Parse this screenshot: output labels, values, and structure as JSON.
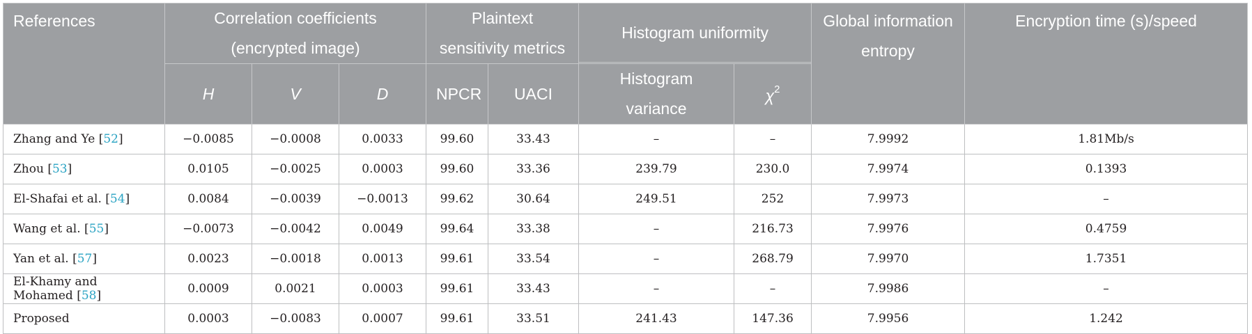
{
  "headers": {
    "references": "References",
    "correlation": "Correlation coefficients (encrypted image)",
    "plaintext": "Plaintext sensitivity metrics",
    "histogram": "Histogram uniformity",
    "entropy": "Global information entropy",
    "time": "Encryption time (s)/speed",
    "h": "H",
    "v": "V",
    "d": "D",
    "npcr": "NPCR",
    "uaci": "UACI",
    "hist_var": "Histogram variance",
    "chi": "χ",
    "chi_sup": "2"
  },
  "rows": [
    {
      "ref": "Zhang and Ye [",
      "cite": "52",
      "close": "]",
      "h": "−0.0085",
      "v": "−0.0008",
      "d": "0.0033",
      "npcr": "99.60",
      "uaci": "33.43",
      "hvar": "–",
      "chi": "–",
      "entropy": "7.9992",
      "time": "1.81Mb/s"
    },
    {
      "ref": "Zhou [",
      "cite": "53",
      "close": "]",
      "h": "0.0105",
      "v": "−0.0025",
      "d": "0.0003",
      "npcr": "99.60",
      "uaci": "33.36",
      "hvar": "239.79",
      "chi": "230.0",
      "entropy": "7.9974",
      "time": "0.1393"
    },
    {
      "ref": "El-Shafai et al. [",
      "cite": "54",
      "close": "]",
      "h": "0.0084",
      "v": "−0.0039",
      "d": "−0.0013",
      "npcr": "99.62",
      "uaci": "30.64",
      "hvar": "249.51",
      "chi": "252",
      "entropy": "7.9973",
      "time": "–"
    },
    {
      "ref": "Wang et al. [",
      "cite": "55",
      "close": "]",
      "h": "−0.0073",
      "v": "−0.0042",
      "d": "0.0049",
      "npcr": "99.64",
      "uaci": "33.38",
      "hvar": "–",
      "chi": "216.73",
      "entropy": "7.9976",
      "time": "0.4759"
    },
    {
      "ref": "Yan et al. [",
      "cite": "57",
      "close": "]",
      "h": "0.0023",
      "v": "−0.0018",
      "d": "0.0013",
      "npcr": "99.61",
      "uaci": "33.54",
      "hvar": "–",
      "chi": "268.79",
      "entropy": "7.9970",
      "time": "1.7351"
    },
    {
      "ref": "El-Khamy and Mohamed [",
      "cite": "58",
      "close": "]",
      "h": "0.0009",
      "v": "0.0021",
      "d": "0.0003",
      "npcr": "99.61",
      "uaci": "33.43",
      "hvar": "–",
      "chi": "–",
      "entropy": "7.9986",
      "time": "–"
    },
    {
      "ref": "Proposed",
      "cite": "",
      "close": "",
      "h": "0.0003",
      "v": "−0.0083",
      "d": "0.0007",
      "npcr": "99.61",
      "uaci": "33.51",
      "hvar": "241.43",
      "chi": "147.36",
      "entropy": "7.9956",
      "time": "1.242"
    }
  ]
}
